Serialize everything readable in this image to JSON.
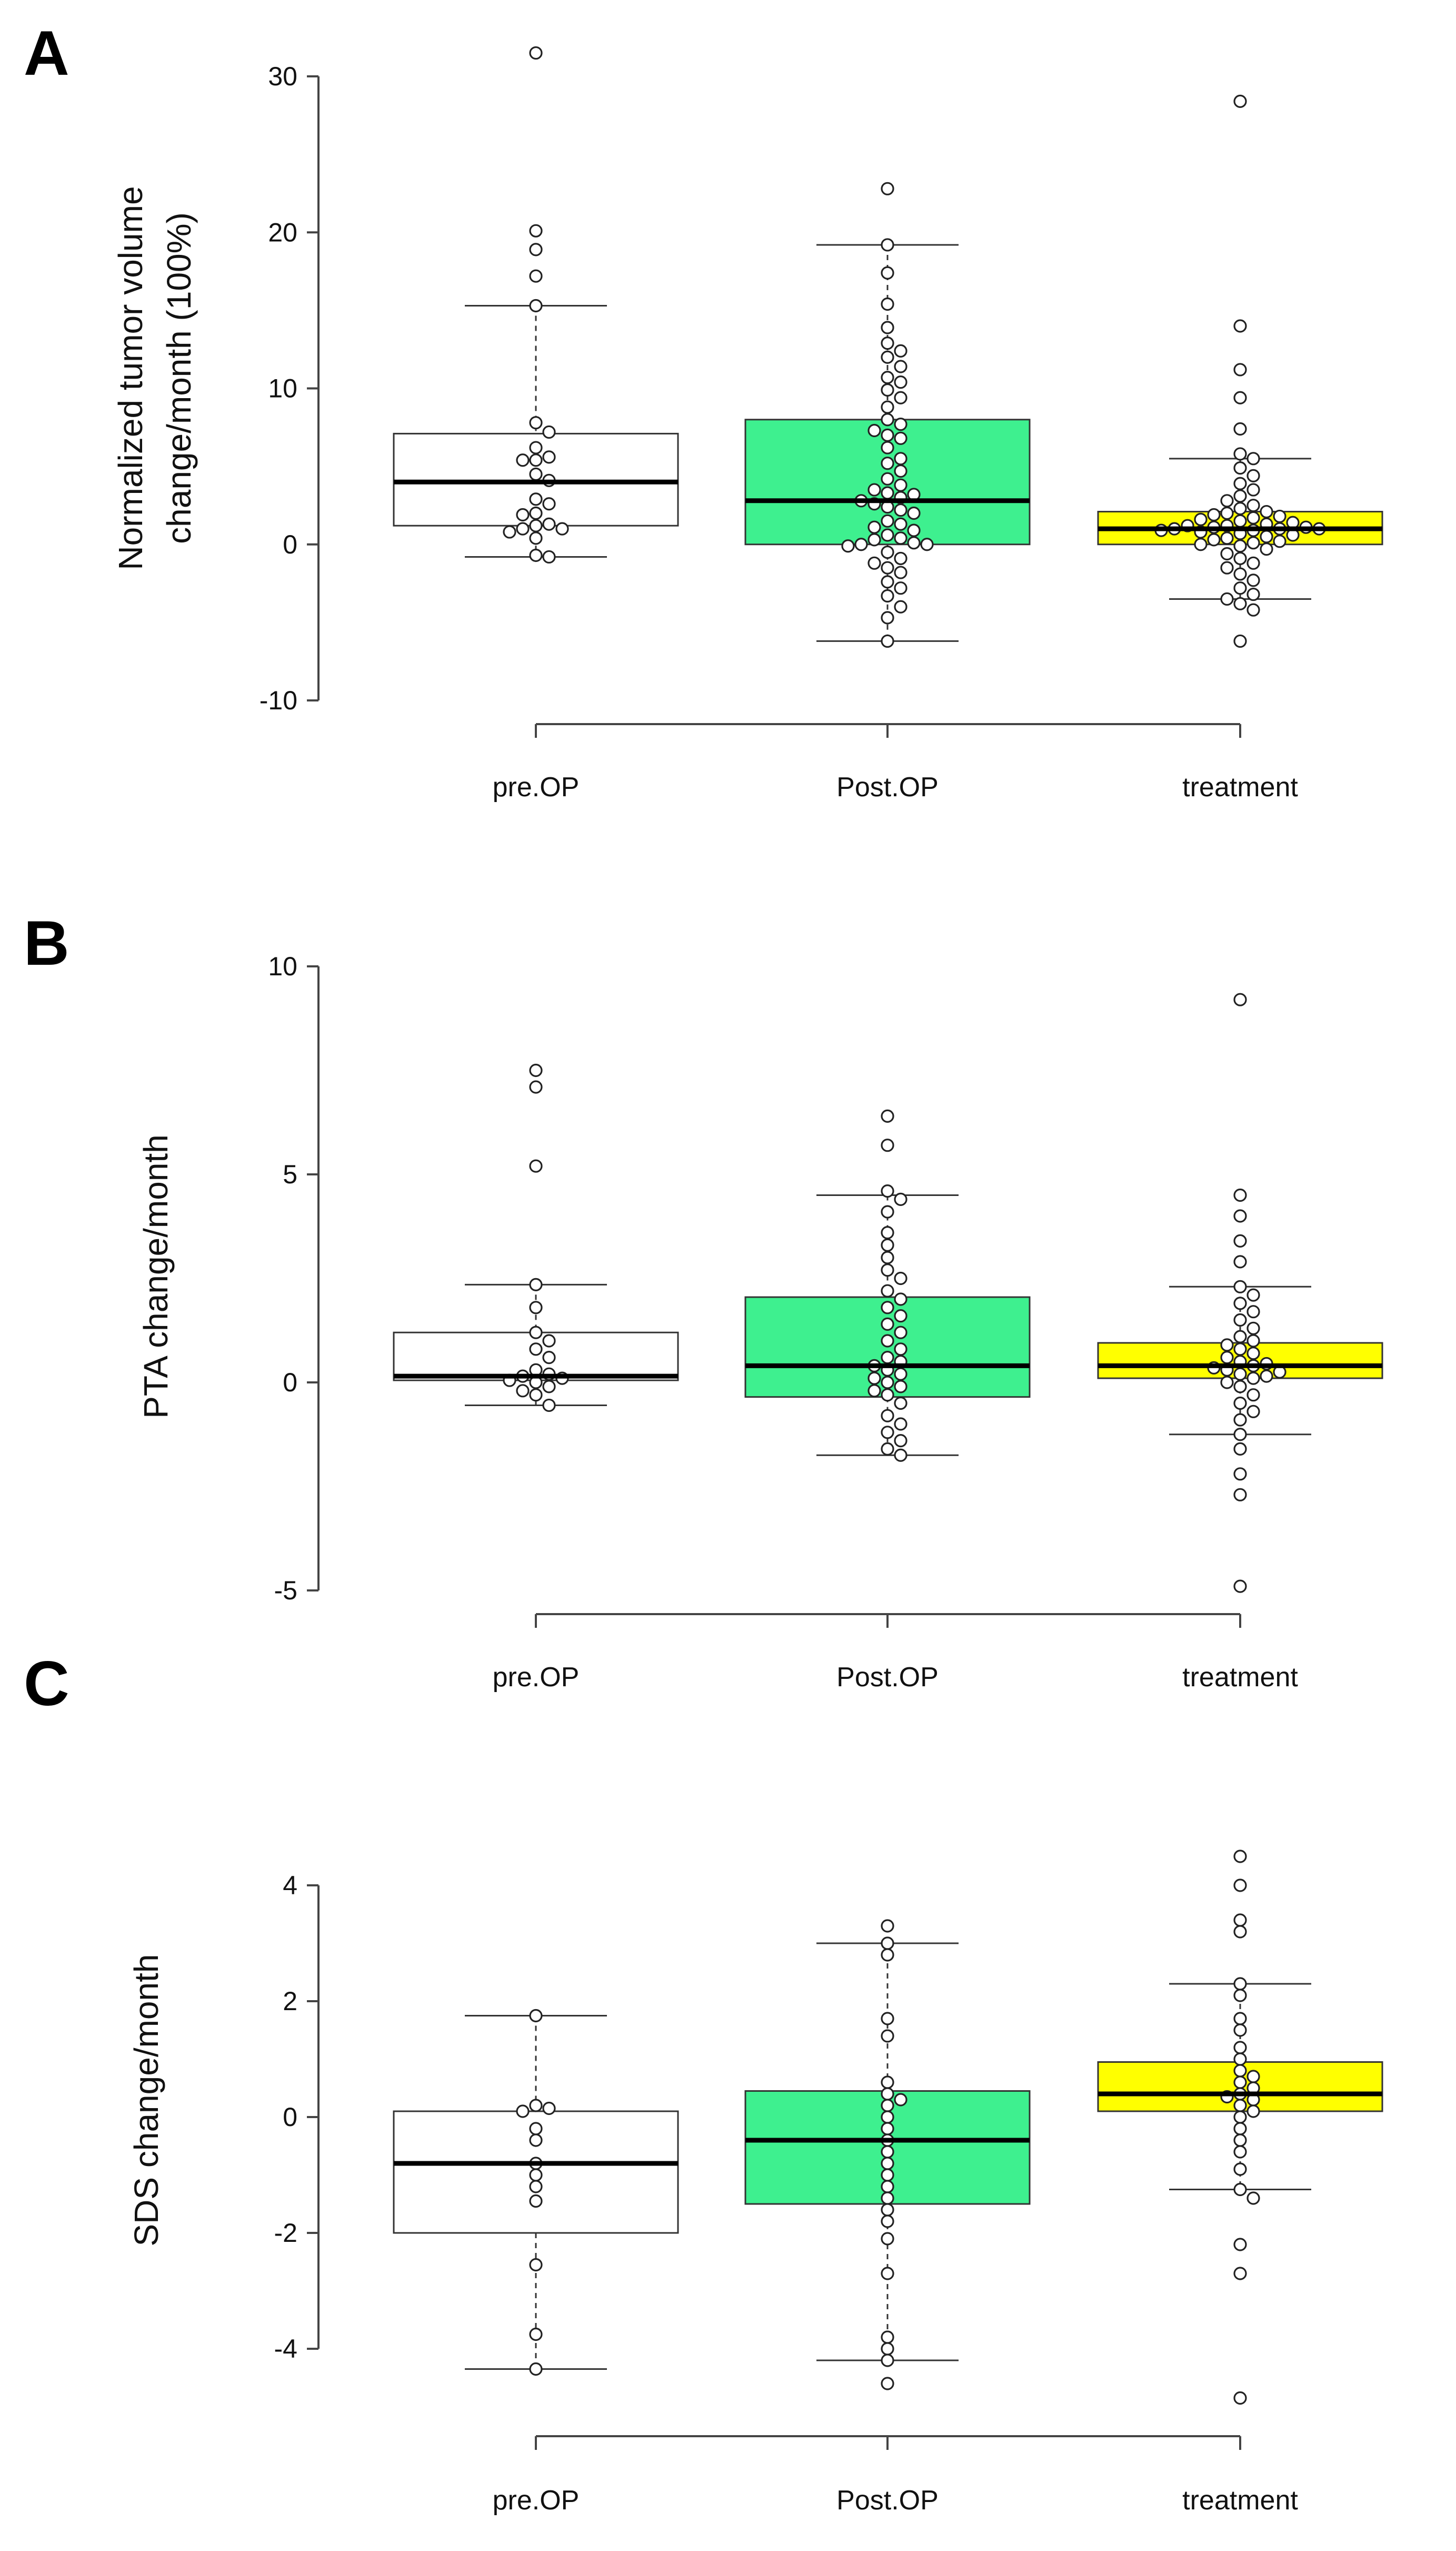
{
  "panels": {
    "A": {
      "letter": "A",
      "ylabel_line1": "Normalized tumor volume",
      "ylabel_line2": "change/month (100%)",
      "y_ticks": [
        "30",
        "20",
        "10",
        "0",
        "-10"
      ],
      "categories": [
        "pre.OP",
        "Post.OP",
        "treatment"
      ]
    },
    "B": {
      "letter": "B",
      "ylabel": "PTA change/month",
      "y_ticks": [
        "10",
        "5",
        "0",
        "-5"
      ],
      "categories": [
        "pre.OP",
        "Post.OP",
        "treatment"
      ]
    },
    "C": {
      "letter": "C",
      "ylabel": "SDS change/month",
      "y_ticks": [
        "4",
        "2",
        "0",
        "-2",
        "-4"
      ],
      "categories": [
        "pre.OP",
        "Post.OP",
        "treatment"
      ]
    }
  },
  "colors": {
    "pre.OP": "#ffffff",
    "Post.OP": "#3ef08f",
    "treatment": "#ffff00"
  },
  "chart_data": [
    {
      "panel": "A",
      "type": "boxplot",
      "title": "",
      "xlabel": "",
      "ylabel": "Normalized tumor volume change/month (100%)",
      "ylim": [
        -10,
        30
      ],
      "categories": [
        "pre.OP",
        "Post.OP",
        "treatment"
      ],
      "boxes": [
        {
          "category": "pre.OP",
          "whisker_low": -0.8,
          "q1": 1.2,
          "median": 4.0,
          "q3": 7.1,
          "whisker_high": 15.3
        },
        {
          "category": "Post.OP",
          "whisker_low": -6.2,
          "q1": 0.0,
          "median": 2.8,
          "q3": 8.0,
          "whisker_high": 19.2
        },
        {
          "category": "treatment",
          "whisker_low": -3.5,
          "q1": 0.0,
          "median": 1.0,
          "q3": 2.1,
          "whisker_high": 5.5
        }
      ],
      "points": {
        "pre.OP": [
          31.5,
          20.1,
          18.9,
          17.2,
          15.3,
          7.8,
          7.2,
          6.2,
          5.6,
          5.4,
          5.4,
          4.5,
          4.1,
          2.9,
          2.6,
          2.0,
          1.9,
          1.3,
          1.2,
          1.0,
          1.0,
          0.8,
          0.4,
          -0.7,
          -0.8
        ],
        "Post.OP": [
          22.8,
          19.2,
          17.4,
          15.4,
          13.9,
          12.9,
          12.4,
          12.0,
          11.4,
          10.7,
          10.4,
          9.9,
          9.4,
          8.8,
          8.0,
          7.7,
          7.3,
          7.0,
          6.8,
          6.2,
          5.5,
          5.2,
          4.7,
          4.2,
          3.8,
          3.5,
          3.3,
          3.2,
          3.0,
          2.8,
          2.6,
          2.4,
          2.2,
          2.0,
          1.5,
          1.3,
          1.1,
          0.9,
          0.6,
          0.4,
          0.3,
          0.1,
          0.0,
          0.0,
          -0.1,
          -0.5,
          -0.9,
          -1.2,
          -1.5,
          -1.8,
          -2.4,
          -2.8,
          -3.3,
          -4.0,
          -4.7,
          -6.2
        ],
        "treatment": [
          28.4,
          14.0,
          11.2,
          9.4,
          7.4,
          5.8,
          5.5,
          4.9,
          4.4,
          3.9,
          3.5,
          3.1,
          2.8,
          2.5,
          2.3,
          2.1,
          2.0,
          1.9,
          1.8,
          1.7,
          1.6,
          1.5,
          1.4,
          1.3,
          1.2,
          1.2,
          1.1,
          1.1,
          1.0,
          1.0,
          1.0,
          0.9,
          0.9,
          0.8,
          0.7,
          0.6,
          0.5,
          0.4,
          0.3,
          0.2,
          0.1,
          0.0,
          -0.1,
          -0.3,
          -0.6,
          -0.9,
          -1.2,
          -1.5,
          -1.9,
          -2.3,
          -2.8,
          -3.2,
          -3.5,
          -3.8,
          -4.2,
          -6.2
        ]
      }
    },
    {
      "panel": "B",
      "type": "boxplot",
      "title": "",
      "xlabel": "",
      "ylabel": "PTA change/month",
      "ylim": [
        -5,
        10
      ],
      "categories": [
        "pre.OP",
        "Post.OP",
        "treatment"
      ],
      "boxes": [
        {
          "category": "pre.OP",
          "whisker_low": -0.55,
          "q1": 0.05,
          "median": 0.15,
          "q3": 1.2,
          "whisker_high": 2.35
        },
        {
          "category": "Post.OP",
          "whisker_low": -1.75,
          "q1": -0.35,
          "median": 0.4,
          "q3": 2.05,
          "whisker_high": 4.5
        },
        {
          "category": "treatment",
          "whisker_low": -1.25,
          "q1": 0.1,
          "median": 0.4,
          "q3": 0.95,
          "whisker_high": 2.3
        }
      ],
      "points": {
        "pre.OP": [
          7.5,
          7.1,
          5.2,
          2.35,
          1.8,
          1.2,
          1.0,
          0.8,
          0.6,
          0.3,
          0.2,
          0.15,
          0.1,
          0.05,
          0.0,
          -0.1,
          -0.2,
          -0.3,
          -0.55
        ],
        "Post.OP": [
          6.4,
          5.7,
          4.6,
          4.4,
          4.1,
          3.6,
          3.3,
          3.0,
          2.7,
          2.5,
          2.2,
          2.0,
          1.8,
          1.6,
          1.4,
          1.2,
          1.0,
          0.8,
          0.6,
          0.5,
          0.4,
          0.3,
          0.2,
          0.1,
          0.0,
          -0.1,
          -0.2,
          -0.3,
          -0.5,
          -0.8,
          -1.0,
          -1.2,
          -1.4,
          -1.6,
          -1.75
        ],
        "treatment": [
          9.2,
          4.5,
          4.0,
          3.4,
          2.9,
          2.3,
          2.1,
          1.9,
          1.7,
          1.5,
          1.3,
          1.1,
          1.0,
          0.9,
          0.8,
          0.7,
          0.6,
          0.5,
          0.45,
          0.4,
          0.35,
          0.3,
          0.25,
          0.2,
          0.15,
          0.1,
          0.0,
          -0.1,
          -0.3,
          -0.5,
          -0.7,
          -0.9,
          -1.25,
          -1.6,
          -2.2,
          -2.7,
          -4.9
        ]
      }
    },
    {
      "panel": "C",
      "type": "boxplot",
      "title": "",
      "xlabel": "",
      "ylabel": "SDS change/month",
      "ylim": [
        -4,
        4
      ],
      "categories": [
        "pre.OP",
        "Post.OP",
        "treatment"
      ],
      "boxes": [
        {
          "category": "pre.OP",
          "whisker_low": -4.35,
          "q1": -2.0,
          "median": -0.8,
          "q3": 0.1,
          "whisker_high": 1.75
        },
        {
          "category": "Post.OP",
          "whisker_low": -4.2,
          "q1": -1.5,
          "median": -0.4,
          "q3": 0.45,
          "whisker_high": 3.0
        },
        {
          "category": "treatment",
          "whisker_low": -1.25,
          "q1": 0.1,
          "median": 0.4,
          "q3": 0.95,
          "whisker_high": 2.3
        }
      ],
      "points": {
        "pre.OP": [
          1.75,
          0.2,
          0.15,
          0.1,
          -0.2,
          -0.4,
          -0.8,
          -1.0,
          -1.2,
          -1.45,
          -2.55,
          -3.75,
          -4.35
        ],
        "Post.OP": [
          3.3,
          3.0,
          2.8,
          1.7,
          1.4,
          0.6,
          0.4,
          0.3,
          0.2,
          0.0,
          -0.2,
          -0.4,
          -0.6,
          -0.8,
          -1.0,
          -1.2,
          -1.4,
          -1.6,
          -1.8,
          -2.1,
          -2.7,
          -3.8,
          -4.0,
          -4.2,
          -4.6
        ],
        "treatment": [
          4.5,
          4.0,
          3.4,
          3.2,
          2.3,
          2.1,
          1.7,
          1.5,
          1.2,
          1.0,
          0.8,
          0.7,
          0.6,
          0.5,
          0.4,
          0.35,
          0.3,
          0.2,
          0.1,
          0.0,
          -0.2,
          -0.4,
          -0.6,
          -0.9,
          -1.25,
          -1.4,
          -2.2,
          -2.7,
          -4.85
        ]
      }
    }
  ]
}
